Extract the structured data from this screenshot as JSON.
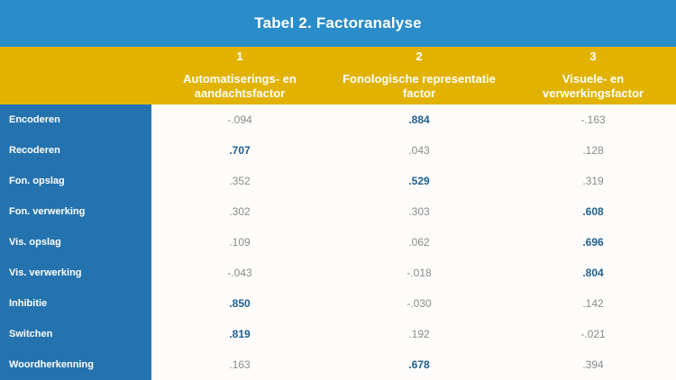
{
  "title": "Tabel 2. Factoranalyse",
  "columns": [
    {
      "number": "1",
      "label_line1": "Automatiserings- en",
      "label_line2": "aandachtsfactor"
    },
    {
      "number": "2",
      "label_line1": "Fonologische representatie",
      "label_line2": "factor"
    },
    {
      "number": "3",
      "label_line1": "Visuele- en",
      "label_line2": "verwerkingsfactor"
    }
  ],
  "rows": [
    {
      "label": "Encoderen",
      "values": [
        "-.094",
        ".884",
        "-.163"
      ],
      "highlight": [
        false,
        true,
        false
      ]
    },
    {
      "label": "Recoderen",
      "values": [
        ".707",
        ".043",
        ".128"
      ],
      "highlight": [
        true,
        false,
        false
      ]
    },
    {
      "label": "Fon. opslag",
      "values": [
        ".352",
        ".529",
        ".319"
      ],
      "highlight": [
        false,
        true,
        false
      ]
    },
    {
      "label": "Fon. verwerking",
      "values": [
        ".302",
        ".303",
        ".608"
      ],
      "highlight": [
        false,
        false,
        true
      ]
    },
    {
      "label": "Vis. opslag",
      "values": [
        ".109",
        ".062",
        ".696"
      ],
      "highlight": [
        false,
        false,
        true
      ]
    },
    {
      "label": "Vis. verwerking",
      "values": [
        "-.043",
        "-.018",
        ".804"
      ],
      "highlight": [
        false,
        false,
        true
      ]
    },
    {
      "label": "Inhibitie",
      "values": [
        ".850",
        "-.030",
        ".142"
      ],
      "highlight": [
        true,
        false,
        false
      ]
    },
    {
      "label": "Switchen",
      "values": [
        ".819",
        ".192",
        "-.021"
      ],
      "highlight": [
        true,
        false,
        false
      ]
    },
    {
      "label": "Woordherkenning",
      "values": [
        ".163",
        ".678",
        ".394"
      ],
      "highlight": [
        false,
        true,
        false
      ]
    }
  ],
  "colors": {
    "title_bar": "#2a8cc9",
    "header_row": "#e1b300",
    "left_column": "#2573ae",
    "highlight_value": "#1f5f8f",
    "normal_value": "#8c8c8c"
  }
}
